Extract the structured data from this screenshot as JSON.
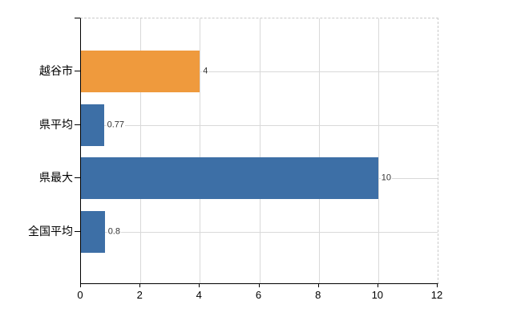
{
  "chart_data": {
    "type": "bar",
    "orientation": "horizontal",
    "title": "",
    "categories": [
      "越谷市",
      "県平均",
      "県最大",
      "全国平均"
    ],
    "values": [
      4,
      0.77,
      10,
      0.8
    ],
    "value_labels": [
      "4",
      "0.77",
      "10",
      "0.8"
    ],
    "bar_colors": [
      "#EF9A3D",
      "#3D6FA6",
      "#3D6FA6",
      "#3D6FA6"
    ],
    "xlim": [
      0,
      12
    ],
    "x_ticks": [
      0,
      2,
      4,
      6,
      8,
      10,
      12
    ],
    "x_tick_labels": [
      "0",
      "2",
      "4",
      "6",
      "8",
      "10",
      "12"
    ],
    "grid": true,
    "legend": false,
    "colors": {
      "background": "#ffffff",
      "axis": "#000000",
      "gridline": "#d9d9d9",
      "border_dashed": "#c9c9c9",
      "category_label": "#000000",
      "tick_label": "#000000",
      "value_label": "#333333"
    }
  }
}
